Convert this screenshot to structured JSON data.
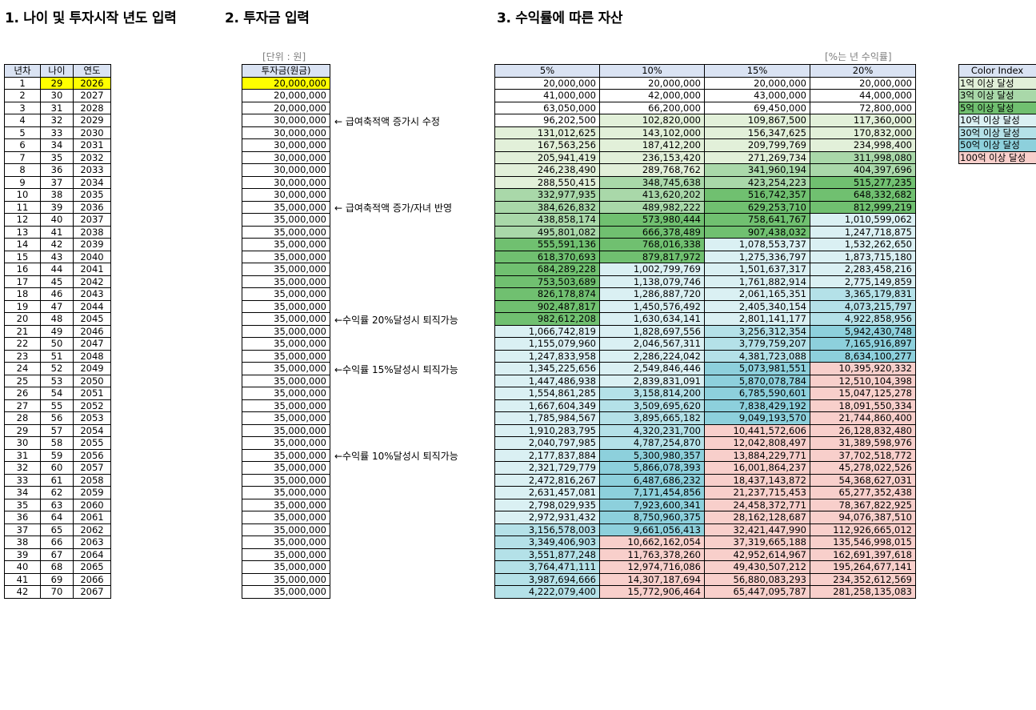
{
  "headings": {
    "h1": "1. 나이 및 투자시작 년도 입력",
    "h2": "2. 투자금 입력",
    "h3": "3. 수익률에 따른 자산"
  },
  "units": {
    "invest": "[단위 : 원]",
    "rate": "[%는 년 수익률]"
  },
  "left_table": {
    "headers": [
      "년차",
      "나이",
      "연도"
    ]
  },
  "invest_header": "투자금(원금)",
  "asset_headers": [
    "5%",
    "10%",
    "15%",
    "20%"
  ],
  "notes": [
    {
      "row": 4,
      "text": "← 급여축적액 증가시 수정"
    },
    {
      "row": 11,
      "text": "← 급여축적액 증가/자녀 반영"
    },
    {
      "row": 20,
      "text": "←수익률 20%달성시 퇴직가능"
    },
    {
      "row": 24,
      "text": "←수익률 15%달성시 퇴직가능"
    },
    {
      "row": 31,
      "text": "←수익률 10%달성시 퇴직가능"
    }
  ],
  "legend": {
    "title": "Color Index",
    "items": [
      {
        "label": "1억 이상 달성",
        "color": "#e2f0d9"
      },
      {
        "label": "3억 이상 달성",
        "color": "#a9d8a9"
      },
      {
        "label": "5억 이상 달성",
        "color": "#70c070"
      },
      {
        "label": "10억 이상 달성",
        "color": "#daf0f3"
      },
      {
        "label": "30억 이상 달성",
        "color": "#b4e1e8"
      },
      {
        "label": "50억 이상 달성",
        "color": "#8dd0dc"
      },
      {
        "label": "100억 이상 달성",
        "color": "#f8cfcb"
      }
    ]
  },
  "colors": {
    "highlight": "#ffff00",
    "header_bg": "#dae3f3"
  },
  "rows": [
    {
      "n": "1",
      "age": "29",
      "year": "2026",
      "inv": "20,000,000",
      "a": [
        "20,000,000",
        "20,000,000",
        "20,000,000",
        "20,000,000"
      ]
    },
    {
      "n": "2",
      "age": "30",
      "year": "2027",
      "inv": "20,000,000",
      "a": [
        "41,000,000",
        "42,000,000",
        "43,000,000",
        "44,000,000"
      ]
    },
    {
      "n": "3",
      "age": "31",
      "year": "2028",
      "inv": "20,000,000",
      "a": [
        "63,050,000",
        "66,200,000",
        "69,450,000",
        "72,800,000"
      ]
    },
    {
      "n": "4",
      "age": "32",
      "year": "2029",
      "inv": "30,000,000",
      "a": [
        "96,202,500",
        "102,820,000",
        "109,867,500",
        "117,360,000"
      ]
    },
    {
      "n": "5",
      "age": "33",
      "year": "2030",
      "inv": "30,000,000",
      "a": [
        "131,012,625",
        "143,102,000",
        "156,347,625",
        "170,832,000"
      ]
    },
    {
      "n": "6",
      "age": "34",
      "year": "2031",
      "inv": "30,000,000",
      "a": [
        "167,563,256",
        "187,412,200",
        "209,799,769",
        "234,998,400"
      ]
    },
    {
      "n": "7",
      "age": "35",
      "year": "2032",
      "inv": "30,000,000",
      "a": [
        "205,941,419",
        "236,153,420",
        "271,269,734",
        "311,998,080"
      ]
    },
    {
      "n": "8",
      "age": "36",
      "year": "2033",
      "inv": "30,000,000",
      "a": [
        "246,238,490",
        "289,768,762",
        "341,960,194",
        "404,397,696"
      ]
    },
    {
      "n": "9",
      "age": "37",
      "year": "2034",
      "inv": "30,000,000",
      "a": [
        "288,550,415",
        "348,745,638",
        "423,254,223",
        "515,277,235"
      ]
    },
    {
      "n": "10",
      "age": "38",
      "year": "2035",
      "inv": "30,000,000",
      "a": [
        "332,977,935",
        "413,620,202",
        "516,742,357",
        "648,332,682"
      ]
    },
    {
      "n": "11",
      "age": "39",
      "year": "2036",
      "inv": "35,000,000",
      "a": [
        "384,626,832",
        "489,982,222",
        "629,253,710",
        "812,999,219"
      ]
    },
    {
      "n": "12",
      "age": "40",
      "year": "2037",
      "inv": "35,000,000",
      "a": [
        "438,858,174",
        "573,980,444",
        "758,641,767",
        "1,010,599,062"
      ]
    },
    {
      "n": "13",
      "age": "41",
      "year": "2038",
      "inv": "35,000,000",
      "a": [
        "495,801,082",
        "666,378,489",
        "907,438,032",
        "1,247,718,875"
      ]
    },
    {
      "n": "14",
      "age": "42",
      "year": "2039",
      "inv": "35,000,000",
      "a": [
        "555,591,136",
        "768,016,338",
        "1,078,553,737",
        "1,532,262,650"
      ]
    },
    {
      "n": "15",
      "age": "43",
      "year": "2040",
      "inv": "35,000,000",
      "a": [
        "618,370,693",
        "879,817,972",
        "1,275,336,797",
        "1,873,715,180"
      ]
    },
    {
      "n": "16",
      "age": "44",
      "year": "2041",
      "inv": "35,000,000",
      "a": [
        "684,289,228",
        "1,002,799,769",
        "1,501,637,317",
        "2,283,458,216"
      ]
    },
    {
      "n": "17",
      "age": "45",
      "year": "2042",
      "inv": "35,000,000",
      "a": [
        "753,503,689",
        "1,138,079,746",
        "1,761,882,914",
        "2,775,149,859"
      ]
    },
    {
      "n": "18",
      "age": "46",
      "year": "2043",
      "inv": "35,000,000",
      "a": [
        "826,178,874",
        "1,286,887,720",
        "2,061,165,351",
        "3,365,179,831"
      ]
    },
    {
      "n": "19",
      "age": "47",
      "year": "2044",
      "inv": "35,000,000",
      "a": [
        "902,487,817",
        "1,450,576,492",
        "2,405,340,154",
        "4,073,215,797"
      ]
    },
    {
      "n": "20",
      "age": "48",
      "year": "2045",
      "inv": "35,000,000",
      "a": [
        "982,612,208",
        "1,630,634,141",
        "2,801,141,177",
        "4,922,858,956"
      ]
    },
    {
      "n": "21",
      "age": "49",
      "year": "2046",
      "inv": "35,000,000",
      "a": [
        "1,066,742,819",
        "1,828,697,556",
        "3,256,312,354",
        "5,942,430,748"
      ]
    },
    {
      "n": "22",
      "age": "50",
      "year": "2047",
      "inv": "35,000,000",
      "a": [
        "1,155,079,960",
        "2,046,567,311",
        "3,779,759,207",
        "7,165,916,897"
      ]
    },
    {
      "n": "23",
      "age": "51",
      "year": "2048",
      "inv": "35,000,000",
      "a": [
        "1,247,833,958",
        "2,286,224,042",
        "4,381,723,088",
        "8,634,100,277"
      ]
    },
    {
      "n": "24",
      "age": "52",
      "year": "2049",
      "inv": "35,000,000",
      "a": [
        "1,345,225,656",
        "2,549,846,446",
        "5,073,981,551",
        "10,395,920,332"
      ]
    },
    {
      "n": "25",
      "age": "53",
      "year": "2050",
      "inv": "35,000,000",
      "a": [
        "1,447,486,938",
        "2,839,831,091",
        "5,870,078,784",
        "12,510,104,398"
      ]
    },
    {
      "n": "26",
      "age": "54",
      "year": "2051",
      "inv": "35,000,000",
      "a": [
        "1,554,861,285",
        "3,158,814,200",
        "6,785,590,601",
        "15,047,125,278"
      ]
    },
    {
      "n": "27",
      "age": "55",
      "year": "2052",
      "inv": "35,000,000",
      "a": [
        "1,667,604,349",
        "3,509,695,620",
        "7,838,429,192",
        "18,091,550,334"
      ]
    },
    {
      "n": "28",
      "age": "56",
      "year": "2053",
      "inv": "35,000,000",
      "a": [
        "1,785,984,567",
        "3,895,665,182",
        "9,049,193,570",
        "21,744,860,400"
      ]
    },
    {
      "n": "29",
      "age": "57",
      "year": "2054",
      "inv": "35,000,000",
      "a": [
        "1,910,283,795",
        "4,320,231,700",
        "10,441,572,606",
        "26,128,832,480"
      ]
    },
    {
      "n": "30",
      "age": "58",
      "year": "2055",
      "inv": "35,000,000",
      "a": [
        "2,040,797,985",
        "4,787,254,870",
        "12,042,808,497",
        "31,389,598,976"
      ]
    },
    {
      "n": "31",
      "age": "59",
      "year": "2056",
      "inv": "35,000,000",
      "a": [
        "2,177,837,884",
        "5,300,980,357",
        "13,884,229,771",
        "37,702,518,772"
      ]
    },
    {
      "n": "32",
      "age": "60",
      "year": "2057",
      "inv": "35,000,000",
      "a": [
        "2,321,729,779",
        "5,866,078,393",
        "16,001,864,237",
        "45,278,022,526"
      ]
    },
    {
      "n": "33",
      "age": "61",
      "year": "2058",
      "inv": "35,000,000",
      "a": [
        "2,472,816,267",
        "6,487,686,232",
        "18,437,143,872",
        "54,368,627,031"
      ]
    },
    {
      "n": "34",
      "age": "62",
      "year": "2059",
      "inv": "35,000,000",
      "a": [
        "2,631,457,081",
        "7,171,454,856",
        "21,237,715,453",
        "65,277,352,438"
      ]
    },
    {
      "n": "35",
      "age": "63",
      "year": "2060",
      "inv": "35,000,000",
      "a": [
        "2,798,029,935",
        "7,923,600,341",
        "24,458,372,771",
        "78,367,822,925"
      ]
    },
    {
      "n": "36",
      "age": "64",
      "year": "2061",
      "inv": "35,000,000",
      "a": [
        "2,972,931,432",
        "8,750,960,375",
        "28,162,128,687",
        "94,076,387,510"
      ]
    },
    {
      "n": "37",
      "age": "65",
      "year": "2062",
      "inv": "35,000,000",
      "a": [
        "3,156,578,003",
        "9,661,056,413",
        "32,421,447,990",
        "112,926,665,012"
      ]
    },
    {
      "n": "38",
      "age": "66",
      "year": "2063",
      "inv": "35,000,000",
      "a": [
        "3,349,406,903",
        "10,662,162,054",
        "37,319,665,188",
        "135,546,998,015"
      ]
    },
    {
      "n": "39",
      "age": "67",
      "year": "2064",
      "inv": "35,000,000",
      "a": [
        "3,551,877,248",
        "11,763,378,260",
        "42,952,614,967",
        "162,691,397,618"
      ]
    },
    {
      "n": "40",
      "age": "68",
      "year": "2065",
      "inv": "35,000,000",
      "a": [
        "3,764,471,111",
        "12,974,716,086",
        "49,430,507,212",
        "195,264,677,141"
      ]
    },
    {
      "n": "41",
      "age": "69",
      "year": "2066",
      "inv": "35,000,000",
      "a": [
        "3,987,694,666",
        "14,307,187,694",
        "56,880,083,293",
        "234,352,612,569"
      ]
    },
    {
      "n": "42",
      "age": "70",
      "year": "2067",
      "inv": "35,000,000",
      "a": [
        "4,222,079,400",
        "15,772,906,464",
        "65,447,095,787",
        "281,258,135,083"
      ]
    }
  ]
}
